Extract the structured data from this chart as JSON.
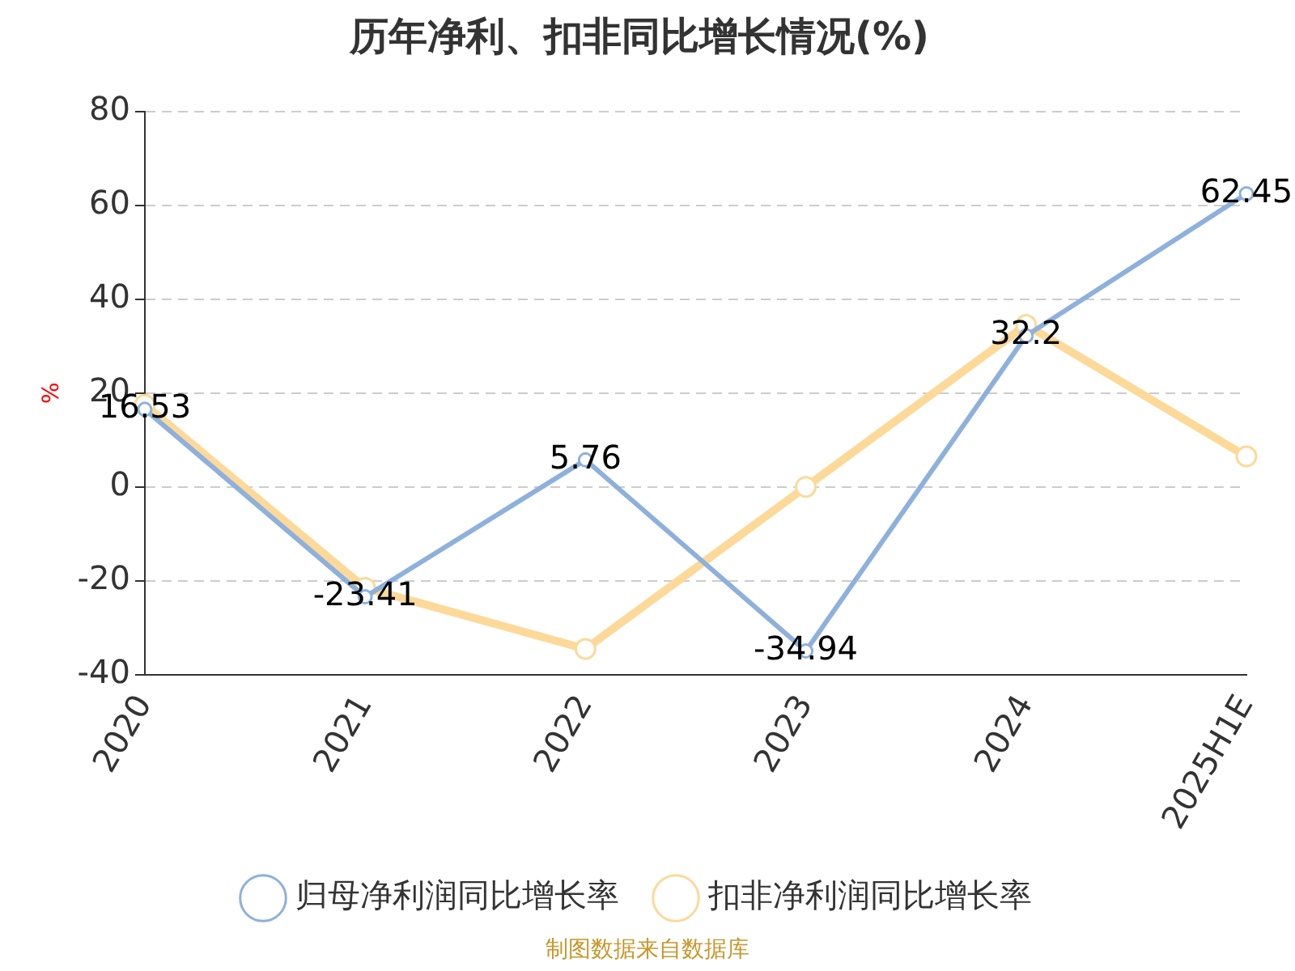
{
  "chart_data": {
    "type": "line",
    "title": "历年净利、扣非同比增长情况(%)",
    "ylabel": "%",
    "categories": [
      "2020",
      "2021",
      "2022",
      "2023",
      "2024",
      "2025H1E"
    ],
    "series": [
      {
        "name": "归母净利润同比增长率",
        "color": "#8eb0dc",
        "values": [
          16.53,
          -23.41,
          5.76,
          -34.94,
          32.2,
          62.45
        ],
        "value_labels": [
          "16.53",
          "-23.41",
          "5.76",
          "-34.94",
          "32.2",
          "62.45"
        ]
      },
      {
        "name": "扣非净利润同比增长率",
        "color": "#fdd999",
        "values": [
          17.5,
          -21.5,
          -34.5,
          0,
          34.5,
          6.5
        ]
      }
    ],
    "ylim": [
      -40,
      80
    ],
    "yticks": [
      -40,
      -20,
      0,
      20,
      40,
      60,
      80
    ],
    "grid": "y",
    "legend": "bottom",
    "marker": "circle",
    "line_style": "solid",
    "annotations": [
      "制图数据来自数据库"
    ]
  }
}
